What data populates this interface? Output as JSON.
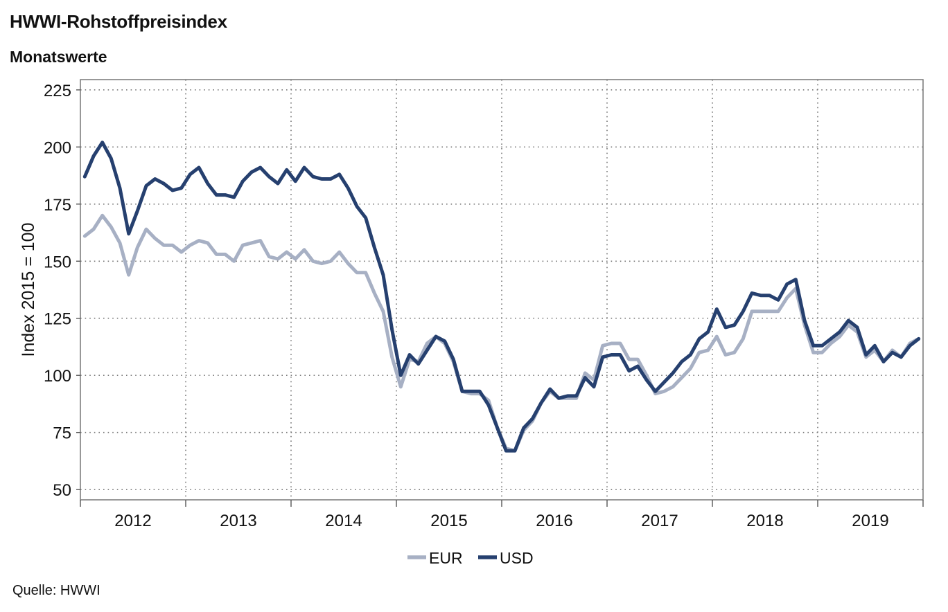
{
  "header": {
    "title": "HWWI-Rohstoffpreisindex",
    "subtitle": "Monatswerte"
  },
  "footer": {
    "source": "Quelle: HWWI"
  },
  "chart_data": {
    "type": "line",
    "title": "HWWI-Rohstoffpreisindex",
    "subtitle": "Monatswerte",
    "ylabel": "Index 2015 = 100",
    "xlabel": "",
    "ylim": [
      50,
      225
    ],
    "yticks": [
      50,
      75,
      100,
      125,
      150,
      175,
      200,
      225
    ],
    "xticks": [
      "2012",
      "2013",
      "2014",
      "2015",
      "2016",
      "2017",
      "2018",
      "2019"
    ],
    "grid": true,
    "legend_position": "bottom-center",
    "x_start": "2012-01",
    "series": [
      {
        "name": "EUR",
        "color": "#a7b0c4",
        "values": [
          161,
          164,
          170,
          165,
          158,
          144,
          156,
          164,
          160,
          157,
          157,
          154,
          157,
          159,
          158,
          153,
          153,
          150,
          157,
          158,
          159,
          152,
          151,
          154,
          151,
          155,
          150,
          149,
          150,
          154,
          149,
          145,
          145,
          136,
          128,
          108,
          95,
          107,
          106,
          114,
          117,
          114,
          106,
          93,
          92,
          92,
          89,
          77,
          68,
          67,
          76,
          80,
          88,
          93,
          90,
          90,
          90,
          101,
          98,
          113,
          114,
          114,
          107,
          107,
          100,
          92,
          93,
          95,
          99,
          103,
          110,
          111,
          117,
          109,
          110,
          116,
          128,
          128,
          128,
          128,
          134,
          138,
          122,
          110,
          110,
          114,
          117,
          122,
          119,
          108,
          111,
          106,
          111,
          108,
          114,
          116
        ]
      },
      {
        "name": "USD",
        "color": "#26406f",
        "values": [
          187,
          196,
          202,
          195,
          182,
          162,
          172,
          183,
          186,
          184,
          181,
          182,
          188,
          191,
          184,
          179,
          179,
          178,
          185,
          189,
          191,
          187,
          184,
          190,
          185,
          191,
          187,
          186,
          186,
          188,
          182,
          174,
          169,
          156,
          144,
          120,
          100,
          109,
          105,
          111,
          117,
          115,
          107,
          93,
          93,
          93,
          87,
          77,
          67,
          67,
          77,
          81,
          88,
          94,
          90,
          91,
          91,
          99,
          95,
          108,
          109,
          109,
          102,
          104,
          98,
          93,
          97,
          101,
          106,
          109,
          116,
          119,
          129,
          121,
          122,
          128,
          136,
          135,
          135,
          133,
          140,
          142,
          124,
          113,
          113,
          116,
          119,
          124,
          121,
          109,
          113,
          106,
          110,
          108,
          113,
          116
        ]
      }
    ]
  }
}
